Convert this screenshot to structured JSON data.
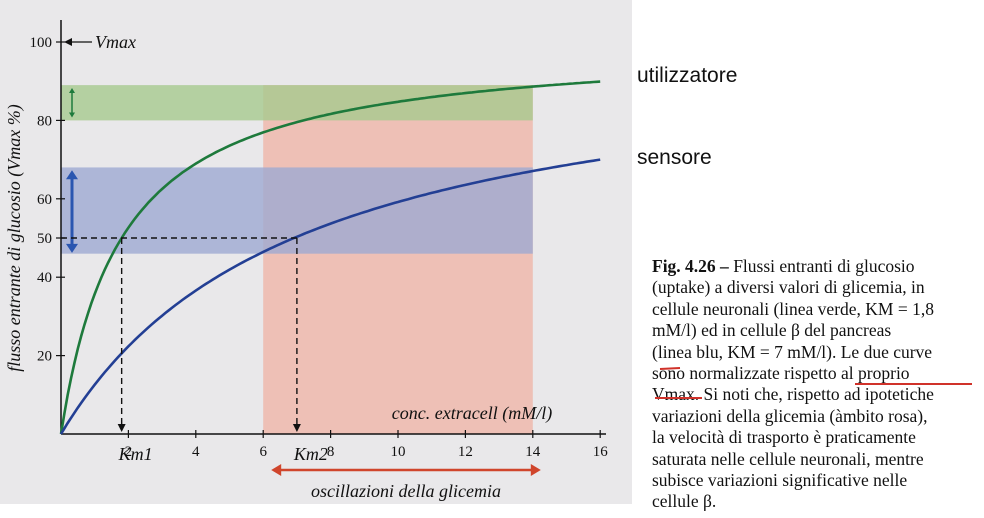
{
  "annotations": {
    "upper": "utilizzatore",
    "lower": "sensore"
  },
  "chart_data": {
    "type": "line",
    "xlabel": "conc. extracell  (mM/l)",
    "ylabel": "flusso entrante di glucosio (Vmax %)",
    "xlim": [
      0,
      16.5
    ],
    "ylim": [
      0,
      105
    ],
    "x_ticks": [
      "2",
      "4",
      "6",
      "8",
      "10",
      "12",
      "14",
      "16"
    ],
    "y_ticks": [
      "20",
      "40",
      "50",
      "60",
      "80",
      "100"
    ],
    "vmax_label": "Vmax",
    "km_labels": [
      "Km1",
      "Km2"
    ],
    "km_values": [
      1.8,
      7
    ],
    "range_label": "oscillazioni della glicemia",
    "range": [
      6,
      14
    ],
    "series": [
      {
        "name": "linea verde",
        "color": "#1e7a3c",
        "km": 1.8,
        "x": [
          0,
          0.5,
          1,
          1.8,
          2.5,
          4,
          6,
          8,
          10,
          12,
          14,
          16
        ],
        "y": [
          0,
          22,
          36,
          50,
          58,
          69,
          77,
          82,
          85,
          87,
          88.6,
          89.9
        ]
      },
      {
        "name": "linea blu",
        "color": "#233f94",
        "km": 7,
        "x": [
          0,
          1,
          2,
          4,
          6,
          7,
          8,
          10,
          12,
          14,
          16
        ],
        "y": [
          0,
          12.5,
          22,
          36,
          46,
          50,
          53,
          59,
          63,
          67,
          70
        ]
      }
    ],
    "green_band": [
      80,
      89
    ],
    "blue_band": [
      46,
      68
    ],
    "colors": {
      "green_band": "#a6c98f",
      "blue_band": "#9ea9d2",
      "pink_band": "#efb9ad",
      "range_arrow": "#d0452c"
    }
  },
  "caption": {
    "fig_label": "Fig. 4.26 –",
    "lines": [
      "Flussi entranti di glucosio",
      "(uptake) a diversi valori di glicemia, in",
      "cellule neuronali (linea verde, KM = 1,8",
      "mM/l) ed in cellule β del pancreas",
      "(linea blu, KM = 7 mM/l). Le due curve",
      "sono normalizzate rispetto al proprio",
      "Vmax. Si noti che, rispetto ad ipotetiche",
      "variazioni della glicemia (àmbito rosa),",
      "la velocità di trasporto è praticamente",
      "saturata nelle cellule neuronali, mentre",
      "subisce variazioni significative nelle",
      "cellule β."
    ]
  }
}
